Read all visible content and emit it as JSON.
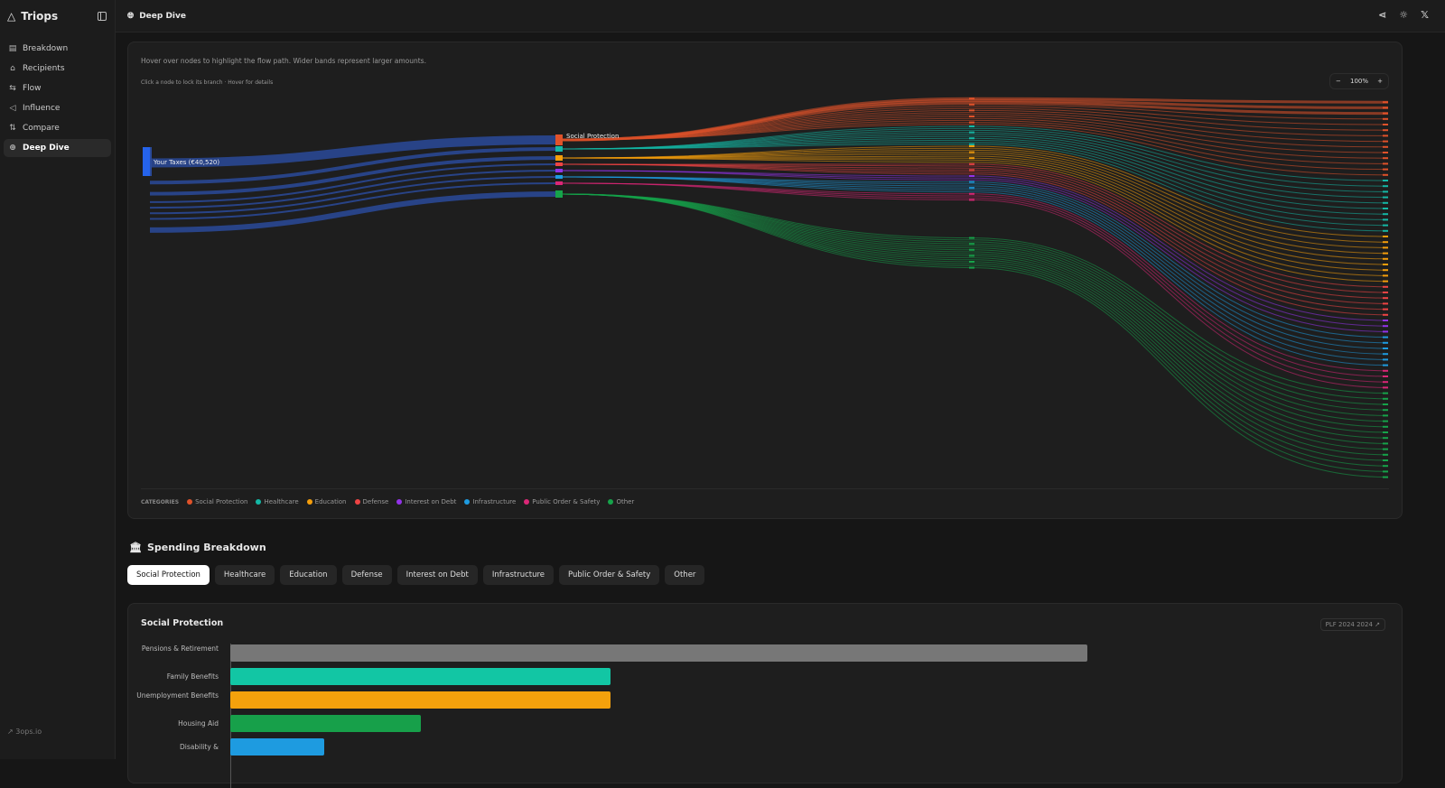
{
  "app": {
    "name": "Triops",
    "footer_link": "3ops.io"
  },
  "sidebar": {
    "items": [
      {
        "label": "Breakdown",
        "icon": "receipt-icon"
      },
      {
        "label": "Recipients",
        "icon": "bank-icon"
      },
      {
        "label": "Flow",
        "icon": "arrows-icon"
      },
      {
        "label": "Influence",
        "icon": "megaphone-icon"
      },
      {
        "label": "Compare",
        "icon": "compare-icon"
      },
      {
        "label": "Deep Dive",
        "icon": "globe-icon",
        "active": true
      }
    ]
  },
  "header": {
    "title": "Deep Dive"
  },
  "sankey": {
    "hint": "Hover over nodes to highlight the flow path. Wider bands represent larger amounts.",
    "subhint": "Click a node to lock its branch · Hover for details",
    "zoom": "100%",
    "source_label": "Your Taxes (€40,520)",
    "highlight_label": "Social Protection",
    "legend_title": "CATEGORIES",
    "categories": [
      {
        "name": "Social Protection",
        "color": "#e0522a"
      },
      {
        "name": "Healthcare",
        "color": "#14b8a6"
      },
      {
        "name": "Education",
        "color": "#f59e0b"
      },
      {
        "name": "Defense",
        "color": "#ef4444"
      },
      {
        "name": "Interest on Debt",
        "color": "#9333ea"
      },
      {
        "name": "Infrastructure",
        "color": "#1e9be0"
      },
      {
        "name": "Public Order & Safety",
        "color": "#db2777"
      },
      {
        "name": "Other",
        "color": "#16a34a"
      }
    ]
  },
  "breakdown": {
    "title": "Spending Breakdown",
    "tabs": [
      "Social Protection",
      "Healthcare",
      "Education",
      "Defense",
      "Interest on Debt",
      "Infrastructure",
      "Public Order & Safety",
      "Other"
    ],
    "active_tab": 0
  },
  "chart_data": {
    "type": "bar",
    "orientation": "horizontal",
    "title": "Social Protection",
    "source": "PLF 2024 2024",
    "categories": [
      "Pensions & Retirement",
      "Family Benefits",
      "Unemployment Benefits",
      "Housing Aid",
      "Disability &"
    ],
    "values": [
      100,
      44.4,
      44.4,
      22.2,
      11
    ],
    "colors": [
      "#777777",
      "#12c6a4",
      "#f4a10c",
      "#17a04a",
      "#1e9be0"
    ],
    "value_unit": "relative (% of largest)"
  }
}
